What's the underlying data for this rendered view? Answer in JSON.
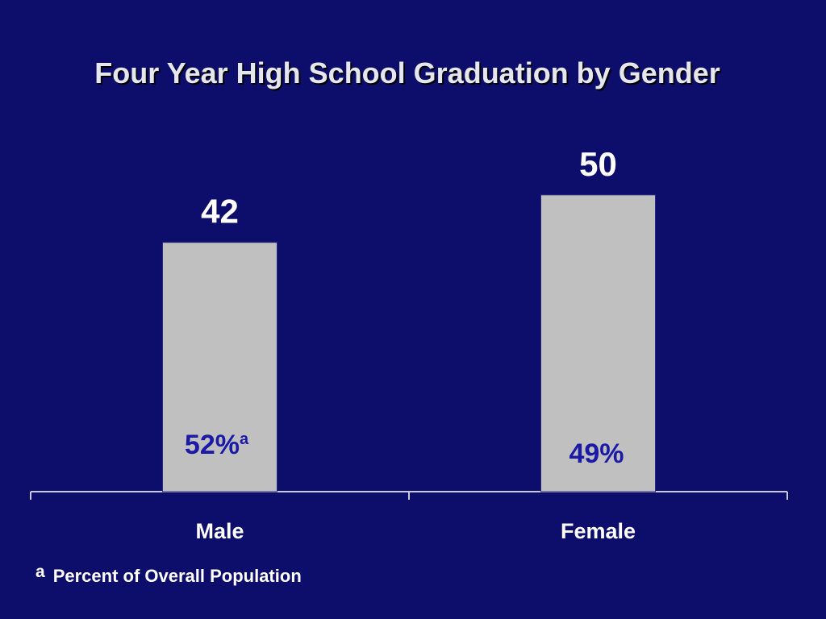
{
  "chart_data": {
    "type": "bar",
    "title": "Four Year High School Graduation by Gender",
    "categories": [
      "Male",
      "Female"
    ],
    "values": [
      42,
      50
    ],
    "value_labels": [
      "42",
      "50"
    ],
    "inner_labels": [
      {
        "text": "52%",
        "superscript": "a"
      },
      {
        "text": "49%",
        "superscript": ""
      }
    ],
    "footnote": {
      "mark": "a",
      "text": "Percent of Overall Population"
    },
    "ylim": [
      0,
      55
    ],
    "grid": false,
    "legend": "none"
  },
  "colors": {
    "background": "#0d0d6b",
    "bar": "#c0c0c0",
    "bar_border": "#2a2a80",
    "text": "#ffffff",
    "inner_label": "#1a1aa6",
    "axis": "#c8c8d8"
  }
}
